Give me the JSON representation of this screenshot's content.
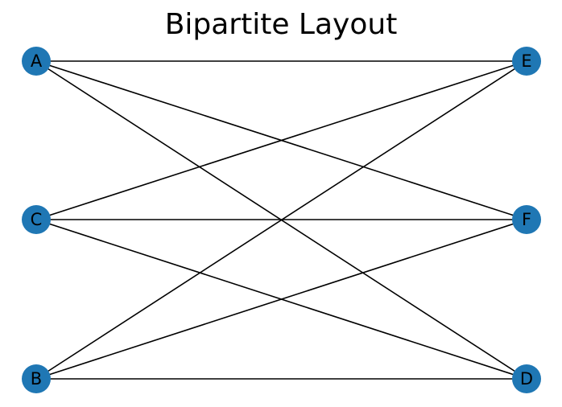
{
  "title": "Bipartite Layout",
  "colors": {
    "node_fill": "#1f77b4",
    "edge_stroke": "#000000",
    "background": "#ffffff"
  },
  "nodes": [
    {
      "id": "A",
      "label": "A",
      "partition": "left",
      "row": 0
    },
    {
      "id": "C",
      "label": "C",
      "partition": "left",
      "row": 1
    },
    {
      "id": "B",
      "label": "B",
      "partition": "left",
      "row": 2
    },
    {
      "id": "E",
      "label": "E",
      "partition": "right",
      "row": 0
    },
    {
      "id": "F",
      "label": "F",
      "partition": "right",
      "row": 1
    },
    {
      "id": "D",
      "label": "D",
      "partition": "right",
      "row": 2
    }
  ],
  "edges": [
    {
      "source": "A",
      "target": "E"
    },
    {
      "source": "A",
      "target": "F"
    },
    {
      "source": "A",
      "target": "D"
    },
    {
      "source": "C",
      "target": "E"
    },
    {
      "source": "C",
      "target": "F"
    },
    {
      "source": "C",
      "target": "D"
    },
    {
      "source": "B",
      "target": "E"
    },
    {
      "source": "B",
      "target": "F"
    },
    {
      "source": "B",
      "target": "D"
    }
  ]
}
